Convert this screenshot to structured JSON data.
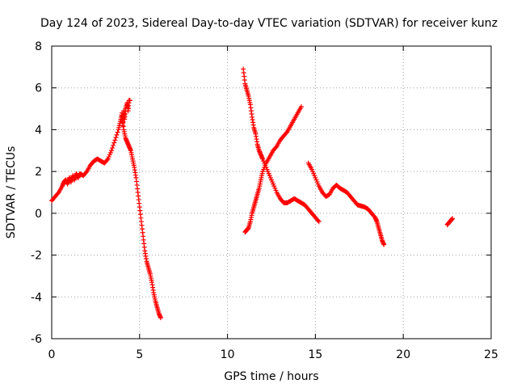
{
  "chart_data": {
    "type": "scatter",
    "title": "Day 124 of 2023, Sidereal Day-to-day VTEC variation (SDTVAR) for receiver kunz",
    "xlabel": "GPS time / hours",
    "ylabel": "SDTVAR / TECUs",
    "xlim": [
      0,
      25
    ],
    "ylim": [
      -6,
      8
    ],
    "xticks": [
      0,
      5,
      10,
      15,
      20,
      25
    ],
    "yticks": [
      -6,
      -4,
      -2,
      0,
      2,
      4,
      6,
      8
    ],
    "grid": true,
    "marker": "+",
    "color": "#ff0000",
    "series": [
      {
        "x": [
          0.0,
          0.2,
          0.4,
          0.6,
          0.7,
          0.8,
          0.9,
          1.0,
          1.1,
          1.2,
          1.3,
          1.4,
          1.5,
          1.6,
          1.8,
          2.0,
          2.2,
          2.4,
          2.6,
          2.8,
          3.0,
          3.2,
          3.4,
          3.6,
          3.8,
          3.9,
          4.0,
          4.05,
          4.1,
          4.15,
          4.2,
          4.3,
          4.35,
          4.4,
          4.45
        ],
        "y": [
          0.6,
          0.8,
          1.0,
          1.3,
          1.5,
          1.6,
          1.4,
          1.7,
          1.5,
          1.8,
          1.6,
          1.9,
          1.7,
          1.9,
          1.8,
          2.0,
          2.3,
          2.5,
          2.6,
          2.5,
          2.4,
          2.6,
          3.0,
          3.5,
          4.0,
          4.4,
          4.8,
          4.2,
          4.9,
          4.5,
          5.0,
          5.3,
          4.9,
          5.4,
          5.4
        ]
      },
      {
        "x": [
          4.0,
          4.1,
          4.2,
          4.3,
          4.4,
          4.5,
          4.6,
          4.7,
          4.8,
          4.9,
          5.0,
          5.1,
          5.2,
          5.3,
          5.4,
          5.5,
          5.6,
          5.7,
          5.8,
          5.9,
          6.0,
          6.1,
          6.2
        ],
        "y": [
          4.6,
          4.0,
          3.6,
          3.4,
          3.2,
          3.0,
          2.6,
          2.2,
          1.7,
          1.0,
          0.3,
          -0.4,
          -1.1,
          -1.8,
          -2.3,
          -2.6,
          -2.9,
          -3.3,
          -3.8,
          -4.2,
          -4.5,
          -4.8,
          -5.0
        ]
      },
      {
        "x": [
          10.9,
          11.0,
          11.1,
          11.2,
          11.3,
          11.4,
          11.5,
          11.6,
          11.7,
          11.8,
          11.9,
          12.0,
          12.2,
          12.4,
          12.6,
          12.8,
          13.0,
          13.2,
          13.4,
          13.6,
          13.8,
          14.0,
          14.2,
          14.4,
          14.6,
          14.8,
          15.0,
          15.2
        ],
        "y": [
          6.9,
          6.2,
          5.9,
          5.6,
          5.2,
          4.6,
          4.1,
          3.8,
          3.3,
          3.0,
          2.8,
          2.6,
          2.2,
          1.8,
          1.4,
          1.0,
          0.7,
          0.5,
          0.5,
          0.6,
          0.7,
          0.6,
          0.5,
          0.4,
          0.2,
          0.0,
          -0.2,
          -0.4
        ]
      },
      {
        "x": [
          11.0,
          11.1,
          11.2,
          11.3,
          11.4,
          11.5,
          11.6,
          11.7,
          11.8,
          11.9,
          12.0,
          12.2,
          12.4,
          12.6,
          12.8,
          13.0,
          13.2,
          13.4,
          13.6,
          13.8,
          14.0,
          14.2
        ],
        "y": [
          -0.9,
          -0.8,
          -0.7,
          -0.4,
          0.0,
          0.3,
          0.6,
          0.9,
          1.2,
          1.6,
          2.0,
          2.4,
          2.7,
          3.0,
          3.2,
          3.5,
          3.7,
          3.9,
          4.2,
          4.5,
          4.8,
          5.1
        ]
      },
      {
        "x": [
          14.6,
          14.8,
          15.0,
          15.2,
          15.4,
          15.6,
          15.8,
          16.0,
          16.2,
          16.4,
          16.6,
          16.8,
          17.0,
          17.2,
          17.4,
          17.6,
          17.8,
          18.0,
          18.2,
          18.4,
          18.5,
          18.6,
          18.7,
          18.8,
          18.9
        ],
        "y": [
          2.4,
          2.1,
          1.7,
          1.3,
          1.0,
          0.8,
          0.9,
          1.2,
          1.35,
          1.2,
          1.1,
          1.0,
          0.8,
          0.6,
          0.4,
          0.35,
          0.3,
          0.2,
          0.0,
          -0.2,
          -0.4,
          -0.7,
          -1.0,
          -1.3,
          -1.5
        ]
      },
      {
        "x": [
          22.5,
          22.6,
          22.7,
          22.8
        ],
        "y": [
          -0.55,
          -0.45,
          -0.35,
          -0.25
        ]
      }
    ]
  }
}
